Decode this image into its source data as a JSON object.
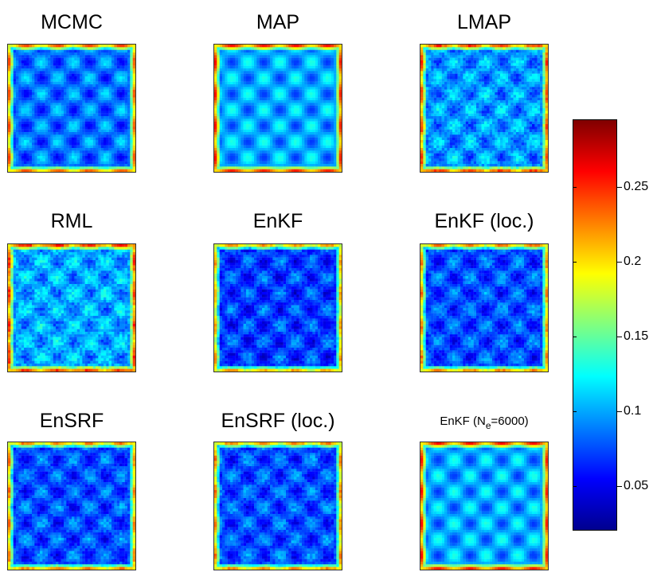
{
  "chart_data": {
    "type": "heatmap",
    "panels": [
      {
        "title": "MCMC",
        "pattern_strength": 0.9,
        "noise": 0.1,
        "base": 0.085
      },
      {
        "title": "MAP",
        "pattern_strength": 0.9,
        "noise": 0.03,
        "base": 0.1
      },
      {
        "title": "LMAP",
        "pattern_strength": 0.75,
        "noise": 0.22,
        "base": 0.095
      },
      {
        "title": "RML",
        "pattern_strength": 0.7,
        "noise": 0.25,
        "base": 0.1
      },
      {
        "title": "EnKF",
        "pattern_strength": 0.75,
        "noise": 0.2,
        "base": 0.07
      },
      {
        "title": "EnKF (loc.)",
        "pattern_strength": 0.75,
        "noise": 0.2,
        "base": 0.075
      },
      {
        "title": "EnSRF",
        "pattern_strength": 0.75,
        "noise": 0.2,
        "base": 0.075
      },
      {
        "title": "EnSRF (loc.)",
        "pattern_strength": 0.75,
        "noise": 0.2,
        "base": 0.075
      },
      {
        "title": "EnKF (N",
        "title_sub": "e",
        "title_suffix": "=6000)",
        "pattern_strength": 0.9,
        "noise": 0.04,
        "base": 0.1
      }
    ],
    "colorbar": {
      "colormap": "jet",
      "range": [
        0.02,
        0.295
      ],
      "ticks": [
        0.05,
        0.1,
        0.15,
        0.2,
        0.25
      ],
      "tick_labels": [
        "0.05",
        "0.1",
        "0.15",
        "0.2",
        "0.25"
      ]
    },
    "grid_on": false
  }
}
